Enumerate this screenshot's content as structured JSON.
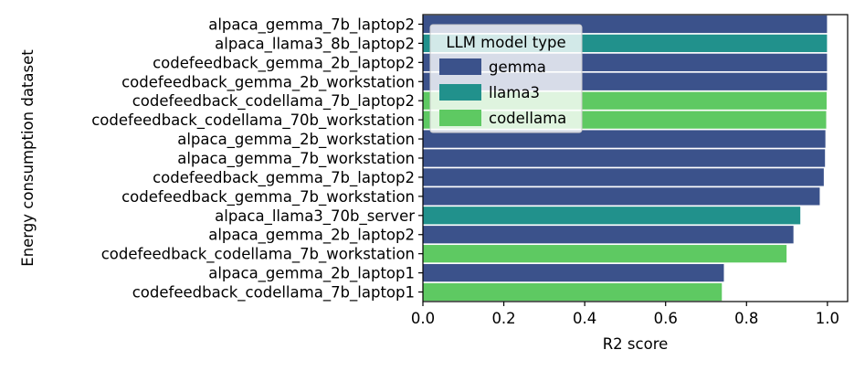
{
  "chart_data": {
    "type": "bar",
    "orientation": "horizontal",
    "xlabel": "R2 score",
    "ylabel": "Energy consumption dataset",
    "xlim": [
      0.0,
      1.05
    ],
    "xticks": [
      "0.0",
      "0.2",
      "0.4",
      "0.6",
      "0.8",
      "1.0"
    ],
    "xtick_values": [
      0.0,
      0.2,
      0.4,
      0.6,
      0.8,
      1.0
    ],
    "grid": false,
    "legend": {
      "title": "LLM model type",
      "placement": "top-center",
      "entries": [
        {
          "name": "gemma",
          "color": "#3b528b"
        },
        {
          "name": "llama3",
          "color": "#21918c"
        },
        {
          "name": "codellama",
          "color": "#5ec962"
        }
      ]
    },
    "categories": [
      "alpaca_gemma_7b_laptop2",
      "alpaca_llama3_8b_laptop2",
      "codefeedback_gemma_2b_laptop2",
      "codefeedback_gemma_2b_workstation",
      "codefeedback_codellama_7b_laptop2",
      "codefeedback_codellama_70b_workstation",
      "alpaca_gemma_2b_workstation",
      "alpaca_gemma_7b_workstation",
      "codefeedback_gemma_7b_laptop2",
      "codefeedback_gemma_7b_workstation",
      "alpaca_llama3_70b_server",
      "alpaca_gemma_2b_laptop2",
      "codefeedback_codellama_7b_workstation",
      "alpaca_gemma_2b_laptop1",
      "codefeedback_codellama_7b_laptop1"
    ],
    "values": [
      0.999,
      0.999,
      0.999,
      0.999,
      0.998,
      0.997,
      0.995,
      0.994,
      0.991,
      0.981,
      0.933,
      0.916,
      0.899,
      0.744,
      0.739
    ],
    "model_type": [
      "gemma",
      "llama3",
      "gemma",
      "gemma",
      "codellama",
      "codellama",
      "gemma",
      "gemma",
      "gemma",
      "gemma",
      "llama3",
      "gemma",
      "codellama",
      "gemma",
      "codellama"
    ]
  }
}
